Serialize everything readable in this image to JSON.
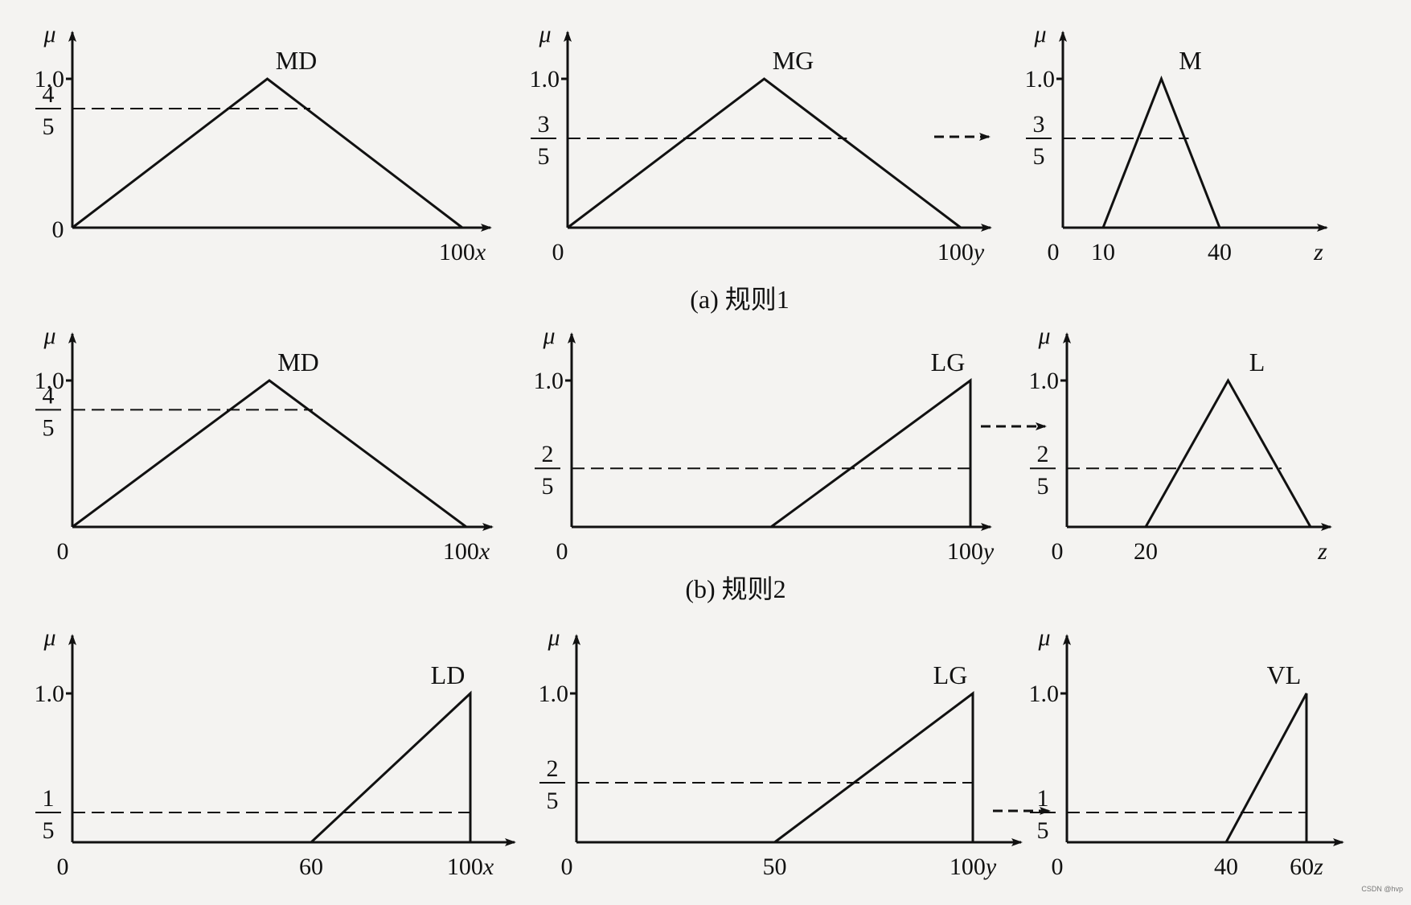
{
  "figure": {
    "mu_symbol": "μ",
    "captions": [
      "(a) 规则1",
      "(b) 规则2"
    ],
    "watermark": "CSDN @hvp",
    "colors": {
      "line": "#111111",
      "background": "#f4f3f1"
    },
    "panels": [
      {
        "row": 0,
        "col": 0,
        "variable": "x",
        "set_label": "MD",
        "shape": "triangle",
        "points": [
          [
            0,
            0
          ],
          [
            50,
            1
          ],
          [
            100,
            0
          ]
        ],
        "cut": {
          "num": "4",
          "den": "5",
          "value": 0.8
        },
        "x_ticks": [
          {
            "value": 0,
            "label": "0"
          },
          {
            "value": 100,
            "label": "100",
            "var": "x"
          }
        ],
        "show_one_tick": true,
        "one_label": "1.0",
        "origin_on_y": true
      },
      {
        "row": 0,
        "col": 1,
        "variable": "y",
        "set_label": "MG",
        "shape": "triangle",
        "points": [
          [
            0,
            0
          ],
          [
            50,
            1
          ],
          [
            100,
            0
          ]
        ],
        "cut": {
          "num": "3",
          "den": "5",
          "value": 0.6
        },
        "x_ticks": [
          {
            "value": 0,
            "label": "0"
          },
          {
            "value": 100,
            "label": "100",
            "var": "y"
          }
        ],
        "show_one_tick": true,
        "one_label": "1.0"
      },
      {
        "row": 0,
        "col": 2,
        "variable": "z",
        "set_label": "M",
        "shape": "triangle",
        "points": [
          [
            10,
            0
          ],
          [
            25,
            1
          ],
          [
            40,
            0
          ]
        ],
        "cut": {
          "num": "3",
          "den": "5",
          "value": 0.6
        },
        "x_ticks": [
          {
            "value": 0,
            "label": "0"
          },
          {
            "value": 10,
            "label": "10"
          },
          {
            "value": 40,
            "label": "40"
          }
        ],
        "axis_var": "z",
        "show_one_tick": true,
        "one_label": "1.0"
      },
      {
        "row": 1,
        "col": 0,
        "variable": "x",
        "set_label": "MD",
        "shape": "triangle",
        "points": [
          [
            0,
            0
          ],
          [
            50,
            1
          ],
          [
            100,
            0
          ]
        ],
        "cut": {
          "num": "4",
          "den": "5",
          "value": 0.8
        },
        "x_ticks": [
          {
            "value": 0,
            "label": "0"
          },
          {
            "value": 100,
            "label": "100",
            "var": "x"
          }
        ],
        "show_one_tick": true,
        "one_label": "1.0"
      },
      {
        "row": 1,
        "col": 1,
        "variable": "y",
        "set_label": "LG",
        "shape": "ramp",
        "points": [
          [
            50,
            0
          ],
          [
            100,
            1
          ],
          [
            100,
            0
          ]
        ],
        "cut": {
          "num": "2",
          "den": "5",
          "value": 0.4
        },
        "x_ticks": [
          {
            "value": 0,
            "label": "0"
          },
          {
            "value": 100,
            "label": "100",
            "var": "y"
          }
        ],
        "show_one_tick": true,
        "one_label": "1.0"
      },
      {
        "row": 1,
        "col": 2,
        "variable": "z",
        "set_label": "L",
        "shape": "triangle",
        "points": [
          [
            20,
            0
          ],
          [
            40,
            1
          ],
          [
            60,
            0
          ]
        ],
        "cut": {
          "num": "2",
          "den": "5",
          "value": 0.4
        },
        "x_ticks": [
          {
            "value": 0,
            "label": "0"
          },
          {
            "value": 20,
            "label": "20"
          }
        ],
        "axis_var": "z",
        "show_one_tick": true,
        "one_label": "1.0"
      },
      {
        "row": 2,
        "col": 0,
        "variable": "x",
        "set_label": "LD",
        "shape": "ramp",
        "points": [
          [
            60,
            0
          ],
          [
            100,
            1
          ],
          [
            100,
            0
          ]
        ],
        "cut": {
          "num": "1",
          "den": "5",
          "value": 0.2
        },
        "x_ticks": [
          {
            "value": 0,
            "label": "0"
          },
          {
            "value": 60,
            "label": "60"
          },
          {
            "value": 100,
            "label": "100",
            "var": "x"
          }
        ],
        "show_one_tick": true,
        "one_label": "1.0"
      },
      {
        "row": 2,
        "col": 1,
        "variable": "y",
        "set_label": "LG",
        "shape": "ramp",
        "points": [
          [
            50,
            0
          ],
          [
            100,
            1
          ],
          [
            100,
            0
          ]
        ],
        "cut": {
          "num": "2",
          "den": "5",
          "value": 0.4
        },
        "x_ticks": [
          {
            "value": 0,
            "label": "0"
          },
          {
            "value": 50,
            "label": "50"
          },
          {
            "value": 100,
            "label": "100",
            "var": "y"
          }
        ],
        "show_one_tick": true,
        "one_label": "1.0"
      },
      {
        "row": 2,
        "col": 2,
        "variable": "z",
        "set_label": "VL",
        "shape": "ramp",
        "points": [
          [
            40,
            0
          ],
          [
            60,
            1
          ],
          [
            60,
            0
          ]
        ],
        "cut": {
          "num": "1",
          "den": "5",
          "value": 0.2
        },
        "x_ticks": [
          {
            "value": 0,
            "label": "0"
          },
          {
            "value": 40,
            "label": "40"
          },
          {
            "value": 60,
            "label": "60",
            "var": "z"
          }
        ],
        "show_one_tick": true,
        "one_label": "1.0"
      }
    ]
  }
}
